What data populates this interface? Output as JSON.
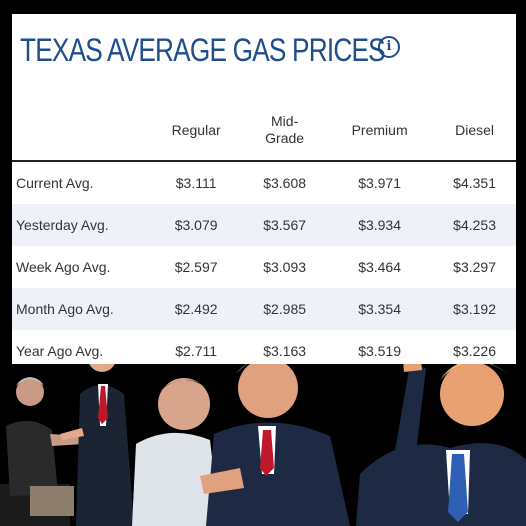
{
  "title": "TEXAS AVERAGE GAS PRICES",
  "info_icon": "info-icon",
  "columns": [
    "",
    "Regular",
    "Mid-\nGrade",
    "Premium",
    "Diesel"
  ],
  "rows": [
    {
      "label": "Current Avg.",
      "values": [
        "$3.111",
        "$3.608",
        "$3.971",
        "$4.351"
      ]
    },
    {
      "label": "Yesterday Avg.",
      "values": [
        "$3.079",
        "$3.567",
        "$3.934",
        "$4.253"
      ]
    },
    {
      "label": "Week Ago Avg.",
      "values": [
        "$2.597",
        "$3.093",
        "$3.464",
        "$3.297"
      ]
    },
    {
      "label": "Month Ago Avg.",
      "values": [
        "$2.492",
        "$2.985",
        "$3.354",
        "$3.192"
      ]
    },
    {
      "label": "Year Ago Avg.",
      "values": [
        "$2.711",
        "$3.163",
        "$3.519",
        "$3.226"
      ]
    }
  ],
  "colors": {
    "title": "#1f4e8c",
    "alt_row": "#eef2f8"
  }
}
